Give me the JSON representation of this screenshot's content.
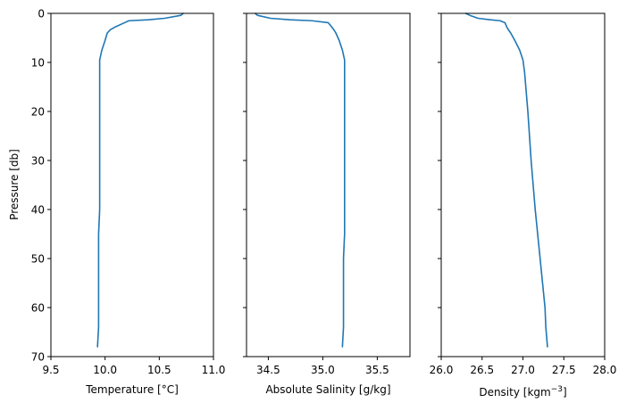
{
  "chart_data": [
    {
      "type": "line",
      "title": "",
      "xlabel": "Temperature [°C]",
      "ylabel": "Pressure [db]",
      "xlim": [
        9.5,
        11.0
      ],
      "ylim": [
        70,
        0
      ],
      "xticks": [
        "9.5",
        "10.0",
        "10.5",
        "11.0"
      ],
      "yticks": [
        "0",
        "10",
        "20",
        "30",
        "40",
        "50",
        "60",
        "70"
      ],
      "grid": false,
      "series": [
        {
          "color": "#1f77b4",
          "x": [
            10.72,
            10.7,
            10.55,
            10.4,
            10.22,
            10.18,
            10.1,
            10.05,
            10.02,
            10.0,
            9.97,
            9.96,
            9.95,
            9.95,
            9.95,
            9.95,
            9.95,
            9.94,
            9.94,
            9.94,
            9.94,
            9.94,
            9.93
          ],
          "y": [
            0,
            0.4,
            1.0,
            1.3,
            1.5,
            1.9,
            2.7,
            3.3,
            4.0,
            5.5,
            7.5,
            8.5,
            9.5,
            12,
            20,
            30,
            40,
            45,
            50,
            55,
            60,
            64,
            68
          ]
        }
      ]
    },
    {
      "type": "line",
      "title": "",
      "xlabel": "Absolute Salinity [g/kg]",
      "ylabel": "",
      "xlim": [
        34.3,
        35.8
      ],
      "ylim": [
        70,
        0
      ],
      "xticks": [
        "34.5",
        "35.0",
        "35.5"
      ],
      "yticks": [],
      "grid": false,
      "series": [
        {
          "color": "#1f77b4",
          "x": [
            34.38,
            34.4,
            34.52,
            34.7,
            34.9,
            35.05,
            35.08,
            35.1,
            35.12,
            35.15,
            35.18,
            35.19,
            35.2,
            35.2,
            35.2,
            35.2,
            35.2,
            35.2,
            35.19,
            35.19,
            35.19,
            35.19,
            35.18
          ],
          "y": [
            0,
            0.4,
            1.0,
            1.3,
            1.5,
            1.9,
            2.7,
            3.3,
            4.0,
            5.5,
            7.5,
            8.5,
            9.5,
            12,
            20,
            30,
            40,
            45,
            50,
            55,
            60,
            64,
            68
          ]
        }
      ]
    },
    {
      "type": "line",
      "title": "",
      "xlabel": "Density [kgm$^{-3}$]",
      "ylabel": "",
      "xlim": [
        26.0,
        28.0
      ],
      "ylim": [
        70,
        0
      ],
      "xticks": [
        "26.0",
        "26.5",
        "27.0",
        "27.5",
        "28.0"
      ],
      "yticks": [],
      "grid": false,
      "series": [
        {
          "color": "#1f77b4",
          "x": [
            26.3,
            26.35,
            26.45,
            26.6,
            26.72,
            26.78,
            26.8,
            26.82,
            26.85,
            26.9,
            26.96,
            26.98,
            27.0,
            27.02,
            27.06,
            27.1,
            27.15,
            27.18,
            27.21,
            27.24,
            27.27,
            27.28,
            27.3
          ],
          "y": [
            0,
            0.4,
            1.0,
            1.3,
            1.5,
            1.9,
            2.7,
            3.3,
            4.0,
            5.5,
            7.5,
            8.5,
            9.5,
            12,
            20,
            30,
            40,
            45,
            50,
            55,
            60,
            64,
            68
          ]
        }
      ]
    }
  ]
}
